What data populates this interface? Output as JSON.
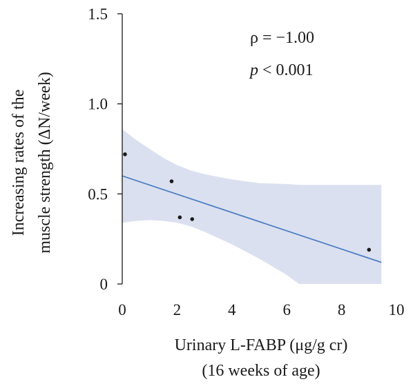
{
  "chart_data": {
    "type": "scatter",
    "x_ticks": [
      "0",
      "2",
      "4",
      "6",
      "8",
      "10"
    ],
    "y_ticks": [
      "0",
      "0.5",
      "1.0",
      "1.5"
    ],
    "xlim": [
      0,
      10
    ],
    "ylim": [
      0,
      1.5
    ],
    "xlabel_lines": [
      "Urinary L-FABP (μg/g cr)",
      "(16 weeks of age)"
    ],
    "ylabel_lines": [
      "Increasing rates of the",
      "muscle strength (ΔN/week)"
    ],
    "annotations": {
      "rho": "ρ = −1.00",
      "p_symbol": "p",
      "p_rest": " < 0.001"
    },
    "points": [
      {
        "x": 0.1,
        "y": 0.72
      },
      {
        "x": 1.8,
        "y": 0.57
      },
      {
        "x": 2.1,
        "y": 0.37
      },
      {
        "x": 2.55,
        "y": 0.36
      },
      {
        "x": 9.0,
        "y": 0.19
      }
    ],
    "fit_line": {
      "x": [
        0,
        9.45
      ],
      "y": [
        0.6,
        0.12
      ]
    },
    "confidence_band": {
      "x": [
        0,
        0.5,
        1,
        1.5,
        2,
        2.5,
        3,
        4,
        5,
        6,
        6.45,
        7,
        8,
        9,
        9.45
      ],
      "upper": [
        0.86,
        0.8,
        0.75,
        0.7,
        0.66,
        0.63,
        0.61,
        0.58,
        0.56,
        0.555,
        0.55,
        0.55,
        0.55,
        0.55,
        0.55
      ],
      "lower": [
        0.34,
        0.35,
        0.355,
        0.35,
        0.34,
        0.32,
        0.29,
        0.22,
        0.14,
        0.05,
        0.0,
        0.0,
        0.0,
        0.0,
        0.0
      ]
    },
    "colors": {
      "band": "#dbe0f0",
      "line": "#4f7fc4",
      "point": "#1a1a1a"
    },
    "grid": false
  }
}
